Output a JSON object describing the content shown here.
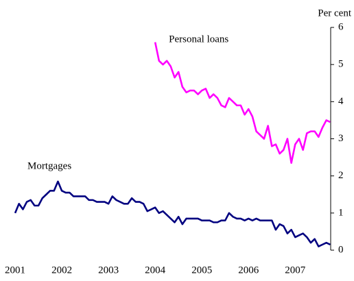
{
  "chart_data": {
    "type": "line",
    "y_axis_label": "Per cent",
    "xlim": [
      2000.97,
      2007.76
    ],
    "xticks": [
      2001,
      2002,
      2003,
      2004,
      2005,
      2006,
      2007
    ],
    "ylim": [
      0,
      6
    ],
    "yticks": [
      0,
      1,
      2,
      3,
      4,
      5,
      6
    ],
    "series": [
      {
        "name": "Personal loans",
        "color": "#ff00ff",
        "x": [
          2004,
          2004.083,
          2004.167,
          2004.25,
          2004.333,
          2004.417,
          2004.5,
          2004.583,
          2004.667,
          2004.75,
          2004.833,
          2004.917,
          2005,
          2005.083,
          2005.167,
          2005.25,
          2005.333,
          2005.417,
          2005.5,
          2005.583,
          2005.667,
          2005.75,
          2005.833,
          2005.917,
          2006,
          2006.083,
          2006.167,
          2006.25,
          2006.333,
          2006.417,
          2006.5,
          2006.583,
          2006.667,
          2006.75,
          2006.833,
          2006.917,
          2007,
          2007.083,
          2007.167,
          2007.25,
          2007.333,
          2007.417,
          2007.5,
          2007.583,
          2007.667,
          2007.75
        ],
        "values": [
          5.6,
          5.1,
          5.0,
          5.1,
          4.95,
          4.65,
          4.8,
          4.4,
          4.25,
          4.3,
          4.3,
          4.2,
          4.3,
          4.35,
          4.1,
          4.2,
          4.1,
          3.9,
          3.85,
          4.1,
          4.0,
          3.9,
          3.9,
          3.65,
          3.8,
          3.6,
          3.2,
          3.1,
          3.0,
          3.35,
          2.8,
          2.85,
          2.6,
          2.7,
          3.0,
          2.35,
          2.85,
          3.0,
          2.7,
          3.15,
          3.2,
          3.2,
          3.05,
          3.3,
          3.5,
          3.45
        ]
      },
      {
        "name": "Mortgages",
        "color": "#000080",
        "x": [
          2001,
          2001.083,
          2001.167,
          2001.25,
          2001.333,
          2001.417,
          2001.5,
          2001.583,
          2001.667,
          2001.75,
          2001.833,
          2001.917,
          2002,
          2002.083,
          2002.167,
          2002.25,
          2002.333,
          2002.417,
          2002.5,
          2002.583,
          2002.667,
          2002.75,
          2002.833,
          2002.917,
          2003,
          2003.083,
          2003.167,
          2003.25,
          2003.333,
          2003.417,
          2003.5,
          2003.583,
          2003.667,
          2003.75,
          2003.833,
          2003.917,
          2004,
          2004.083,
          2004.167,
          2004.25,
          2004.333,
          2004.417,
          2004.5,
          2004.583,
          2004.667,
          2004.75,
          2004.833,
          2004.917,
          2005,
          2005.083,
          2005.167,
          2005.25,
          2005.333,
          2005.417,
          2005.5,
          2005.583,
          2005.667,
          2005.75,
          2005.833,
          2005.917,
          2006,
          2006.083,
          2006.167,
          2006.25,
          2006.333,
          2006.417,
          2006.5,
          2006.583,
          2006.667,
          2006.75,
          2006.833,
          2006.917,
          2007,
          2007.083,
          2007.167,
          2007.25,
          2007.333,
          2007.417,
          2007.5,
          2007.583,
          2007.667,
          2007.75
        ],
        "values": [
          1.0,
          1.25,
          1.1,
          1.3,
          1.35,
          1.2,
          1.2,
          1.4,
          1.5,
          1.6,
          1.6,
          1.85,
          1.6,
          1.55,
          1.55,
          1.45,
          1.45,
          1.45,
          1.45,
          1.35,
          1.35,
          1.3,
          1.3,
          1.3,
          1.25,
          1.45,
          1.35,
          1.3,
          1.25,
          1.25,
          1.4,
          1.3,
          1.3,
          1.25,
          1.05,
          1.1,
          1.15,
          1.0,
          1.05,
          0.95,
          0.85,
          0.75,
          0.9,
          0.7,
          0.85,
          0.85,
          0.85,
          0.85,
          0.8,
          0.8,
          0.8,
          0.75,
          0.75,
          0.8,
          0.8,
          1.0,
          0.9,
          0.85,
          0.85,
          0.8,
          0.85,
          0.8,
          0.85,
          0.8,
          0.8,
          0.8,
          0.8,
          0.55,
          0.7,
          0.65,
          0.45,
          0.55,
          0.35,
          0.4,
          0.45,
          0.35,
          0.2,
          0.3,
          0.1,
          0.15,
          0.2,
          0.15
        ]
      }
    ]
  }
}
